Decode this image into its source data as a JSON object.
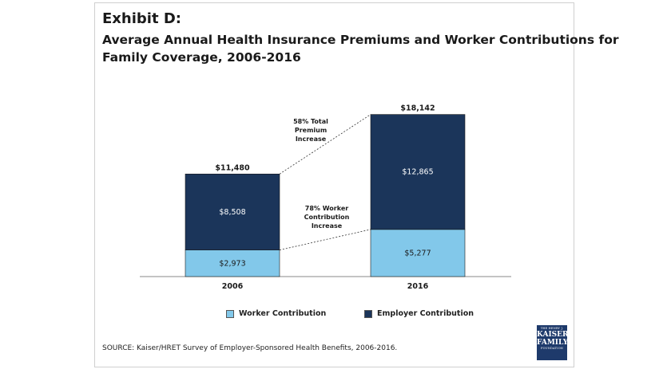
{
  "header": {
    "exhibit": "Exhibit D:",
    "title_line1": "Average Annual Health Insurance Premiums and Worker Contributions for",
    "title_line2": "Family Coverage, 2006-2016"
  },
  "source": "SOURCE:  Kaiser/HRET Survey of Employer-Sponsored Health Benefits, 2006-2016.",
  "logo": {
    "line1": "THE HENRY J.",
    "line2": "KAISER",
    "line3": "FAMILY",
    "line4": "FOUNDATION"
  },
  "colors": {
    "worker": "#82c8ea",
    "employer": "#1b355a",
    "axis": "#888888",
    "text": "#1a1a1a"
  },
  "chart_data": {
    "type": "bar",
    "stacked": true,
    "categories": [
      "2006",
      "2016"
    ],
    "series": [
      {
        "name": "Worker Contribution",
        "values": [
          2973,
          5277
        ],
        "labels": [
          "$2,973",
          "$5,277"
        ]
      },
      {
        "name": "Employer Contribution",
        "values": [
          8508,
          12865
        ],
        "labels": [
          "$8,508",
          "$12,865"
        ]
      }
    ],
    "totals": [
      11480,
      18142
    ],
    "total_labels": [
      "$11,480",
      "$18,142"
    ],
    "annotations": [
      {
        "lines": [
          "58% Total",
          "Premium",
          "Increase"
        ]
      },
      {
        "lines": [
          "78% Worker",
          "Contribution",
          "Increase"
        ]
      }
    ],
    "ylim": [
      0,
      19000
    ],
    "grid": false,
    "legend_position": "bottom"
  }
}
